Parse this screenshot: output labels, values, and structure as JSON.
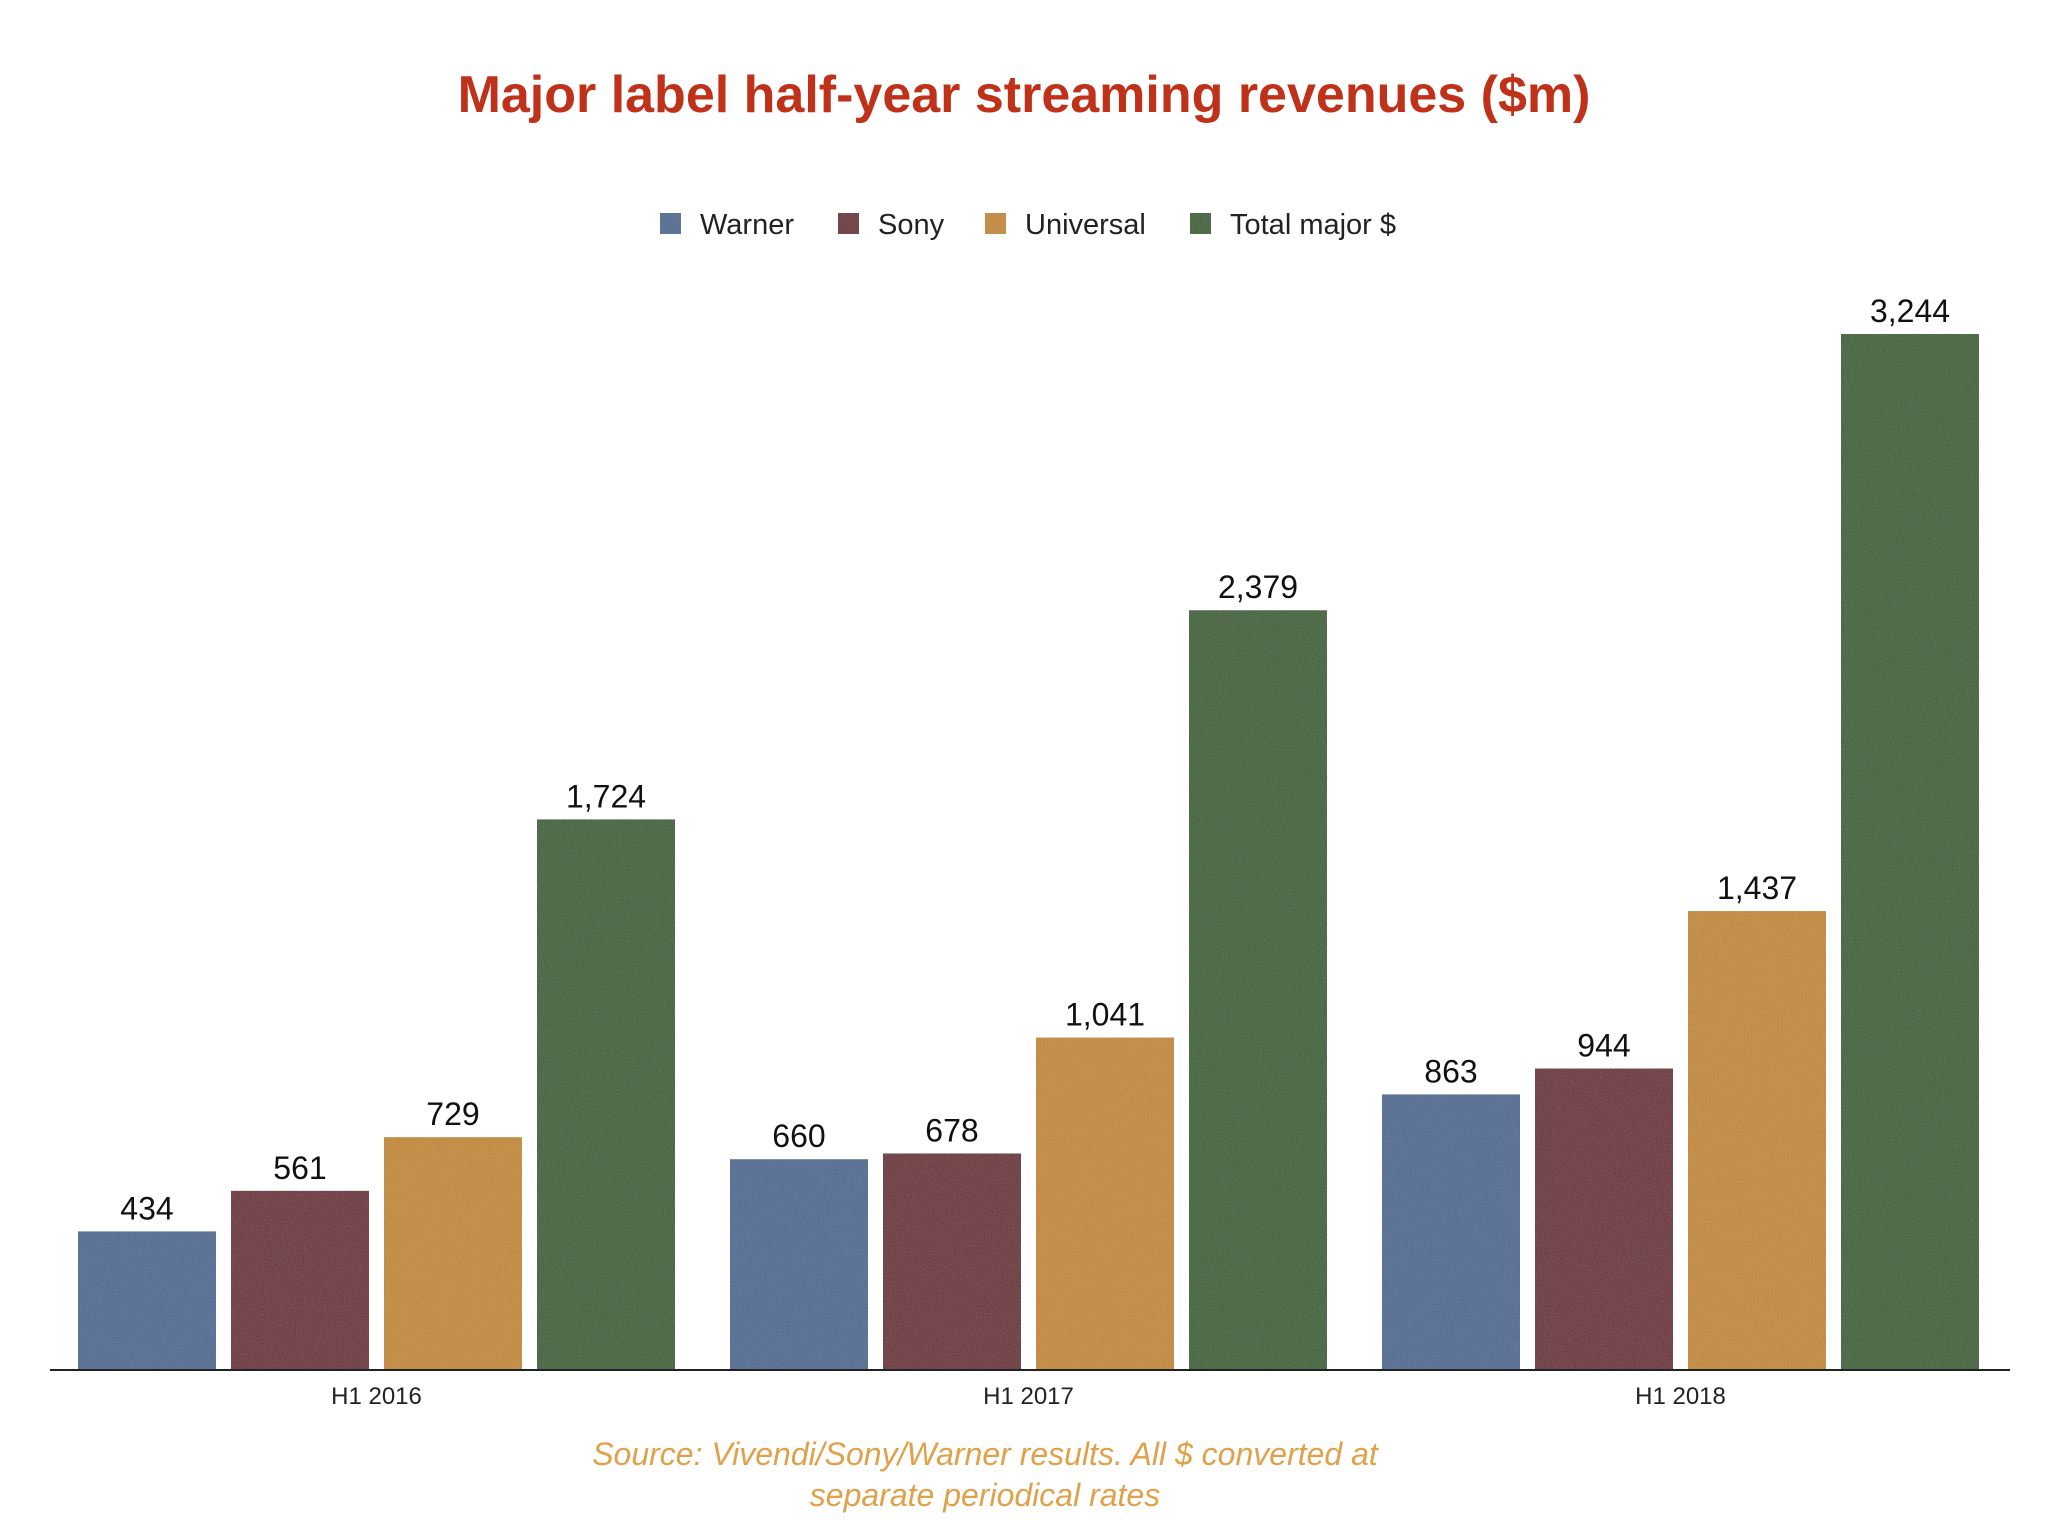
{
  "chart_data": {
    "type": "bar",
    "title": "Major label half-year streaming revenues ($m)",
    "categories": [
      "H1 2016",
      "H1 2017",
      "H1 2018"
    ],
    "series": [
      {
        "name": "Warner",
        "color": "#4e6b93",
        "values": [
          434,
          660,
          863
        ],
        "labels": [
          "434",
          "660",
          "863"
        ]
      },
      {
        "name": "Sony",
        "color": "#6b2a30",
        "values": [
          561,
          678,
          944
        ],
        "labels": [
          "561",
          "678",
          "944"
        ]
      },
      {
        "name": "Universal",
        "color": "#c4892f",
        "values": [
          729,
          1041,
          1437
        ],
        "labels": [
          "729",
          "1,041",
          "1,437"
        ]
      },
      {
        "name": "Total major $",
        "color": "#3b6130",
        "values": [
          1724,
          2379,
          3244
        ],
        "labels": [
          "1,724",
          "2,379",
          "3,244"
        ]
      }
    ],
    "ylim": [
      0,
      3244
    ],
    "xlabel": "",
    "ylabel": "",
    "grid": false,
    "legend_position": "top-center",
    "source": [
      "Source: Vivendi/Sony/Warner results. All $ converted at",
      "separate periodical rates"
    ]
  }
}
